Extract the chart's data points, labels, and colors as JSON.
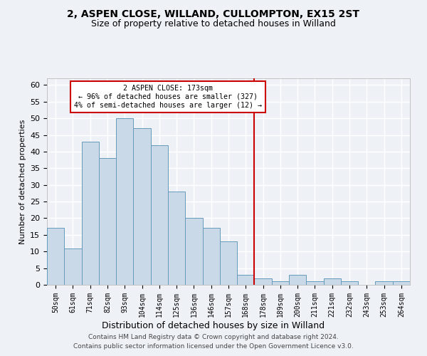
{
  "title1": "2, ASPEN CLOSE, WILLAND, CULLOMPTON, EX15 2ST",
  "title2": "Size of property relative to detached houses in Willand",
  "xlabel": "Distribution of detached houses by size in Willand",
  "ylabel": "Number of detached properties",
  "categories": [
    "50sqm",
    "61sqm",
    "71sqm",
    "82sqm",
    "93sqm",
    "104sqm",
    "114sqm",
    "125sqm",
    "136sqm",
    "146sqm",
    "157sqm",
    "168sqm",
    "178sqm",
    "189sqm",
    "200sqm",
    "211sqm",
    "221sqm",
    "232sqm",
    "243sqm",
    "253sqm",
    "264sqm"
  ],
  "values": [
    17,
    11,
    43,
    38,
    50,
    47,
    42,
    28,
    20,
    17,
    13,
    3,
    2,
    1,
    3,
    1,
    2,
    1,
    0,
    1,
    1
  ],
  "bar_color": "#c9d9e8",
  "bar_edge_color": "#6699bb",
  "vline_x_index": 11.5,
  "annotation_line1": "2 ASPEN CLOSE: 173sqm",
  "annotation_line2": "← 96% of detached houses are smaller (327)",
  "annotation_line3": "4% of semi-detached houses are larger (12) →",
  "annotation_box_color": "#cc0000",
  "ylim": [
    0,
    62
  ],
  "yticks": [
    0,
    5,
    10,
    15,
    20,
    25,
    30,
    35,
    40,
    45,
    50,
    55,
    60
  ],
  "footer1": "Contains HM Land Registry data © Crown copyright and database right 2024.",
  "footer2": "Contains public sector information licensed under the Open Government Licence v3.0.",
  "bg_color": "#eef2f7",
  "grid_color": "#ffffff",
  "title1_fontsize": 10,
  "title2_fontsize": 9
}
